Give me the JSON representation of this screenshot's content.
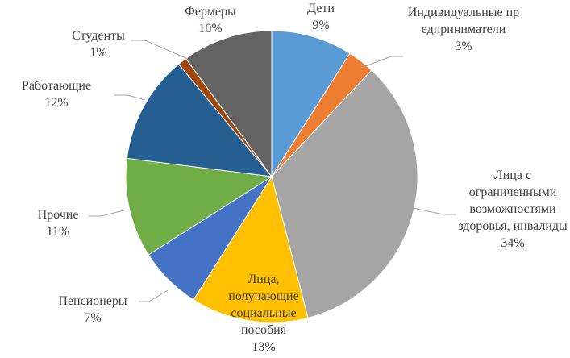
{
  "chart_data": {
    "type": "pie",
    "categories": [
      "Дети",
      "Индивидуальные предприниматели",
      "Лица с ограниченными возможностями здоровья, инвалиды",
      "Лица, получающие социальные пособия",
      "Пенсионеры",
      "Прочие",
      "Работающие",
      "Студенты",
      "Фермеры"
    ],
    "values": [
      9,
      3,
      34,
      13,
      7,
      11,
      12,
      1,
      10
    ],
    "value_labels": [
      "9%",
      "3%",
      "34%",
      "13%",
      "7%",
      "11%",
      "12%",
      "1%",
      "10%"
    ],
    "colors": [
      "#5b9bd5",
      "#ed7d31",
      "#a5a5a5",
      "#ffc000",
      "#4472c4",
      "#70ad47",
      "#255e91",
      "#9e480e",
      "#636363"
    ]
  }
}
